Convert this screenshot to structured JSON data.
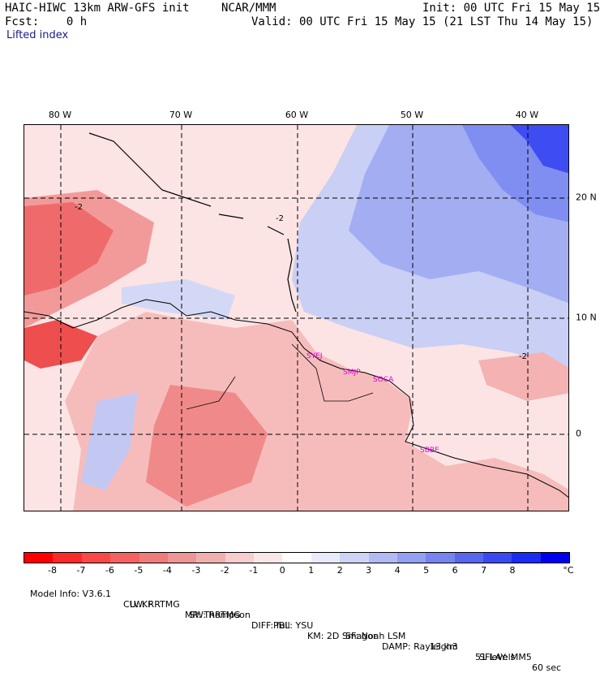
{
  "header": {
    "model": "HAIC-HIWC 13km ARW-GFS init",
    "org": "NCAR/MMM",
    "init": "Init: 00 UTC Fri 15 May 15",
    "fcst": "Fcst:    0 h",
    "valid": "Valid: 00 UTC Fri 15 May 15 (21 LST Thu 14 May 15)",
    "field": "Lifted index"
  },
  "map": {
    "lon_labels": [
      "80 W",
      "70 W",
      "60 W",
      "50 W",
      "40 W"
    ],
    "lat_labels": [
      "20 N",
      "10 N",
      "0"
    ],
    "contour_label": "-2",
    "stations": [
      "SYEJ",
      "SMJP",
      "SOCA",
      "SBBE"
    ],
    "colors": {
      "ocean": "#fce4e4",
      "land": "#f3aaaa",
      "warm": "#ef6b6b",
      "cool": "#c9cff5",
      "cold": "#7f8ef0",
      "coldest": "#3d4df2",
      "station": "#e000e0",
      "grid": "#000000"
    }
  },
  "colorbar": {
    "ticks": [
      "-8",
      "-7",
      "-6",
      "-5",
      "-4",
      "-3",
      "-2",
      "-1",
      "0",
      "1",
      "2",
      "3",
      "4",
      "5",
      "6",
      "7",
      "8"
    ],
    "unit": "°C",
    "colors": [
      "#ff0000",
      "#fb2a2a",
      "#f84848",
      "#f46262",
      "#f07b7b",
      "#ee9595",
      "#f0b0b0",
      "#f6cece",
      "#fbe7e7",
      "#ffffff",
      "#e9ebfb",
      "#cfd4f7",
      "#b3baf3",
      "#959ff1",
      "#7784ef",
      "#5966ee",
      "#3b4af0",
      "#1a2bf2",
      "#0000f0"
    ]
  },
  "footer": {
    "line1": [
      "Model Info: V3.6.1",
      "CU: KF",
      "MP: Thompson",
      "PBL: YSU",
      "SF: Noah LSM",
      "13 km",
      "51 levels",
      "60 sec"
    ],
    "line2": [
      "LW: RRTMG",
      "SW: RRTMG",
      "DIFF: full",
      "KM: 2D Smagor",
      "DAMP: Rayleigh3",
      "SFLAY: MM5"
    ]
  }
}
